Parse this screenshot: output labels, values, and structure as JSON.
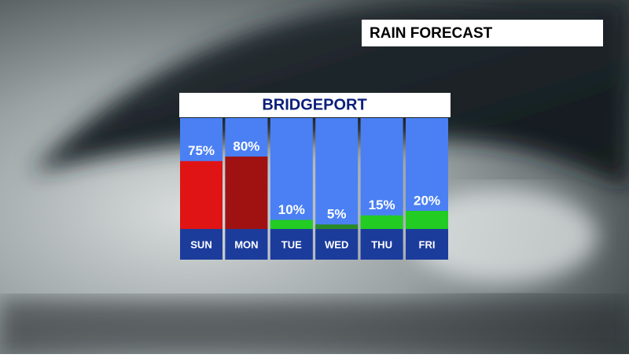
{
  "header": {
    "title": "RAIN FORECAST"
  },
  "chart_data": {
    "type": "bar",
    "title": "BRIDGEPORT",
    "categories": [
      "SUN",
      "MON",
      "TUE",
      "WED",
      "THU",
      "FRI"
    ],
    "values": [
      75,
      80,
      10,
      5,
      15,
      20
    ],
    "value_labels": [
      "75%",
      "80%",
      "10%",
      "5%",
      "15%",
      "20%"
    ],
    "colors": [
      "#e01414",
      "#a01212",
      "#22cc22",
      "#2a8a2a",
      "#22cc22",
      "#22cc22"
    ]
  }
}
